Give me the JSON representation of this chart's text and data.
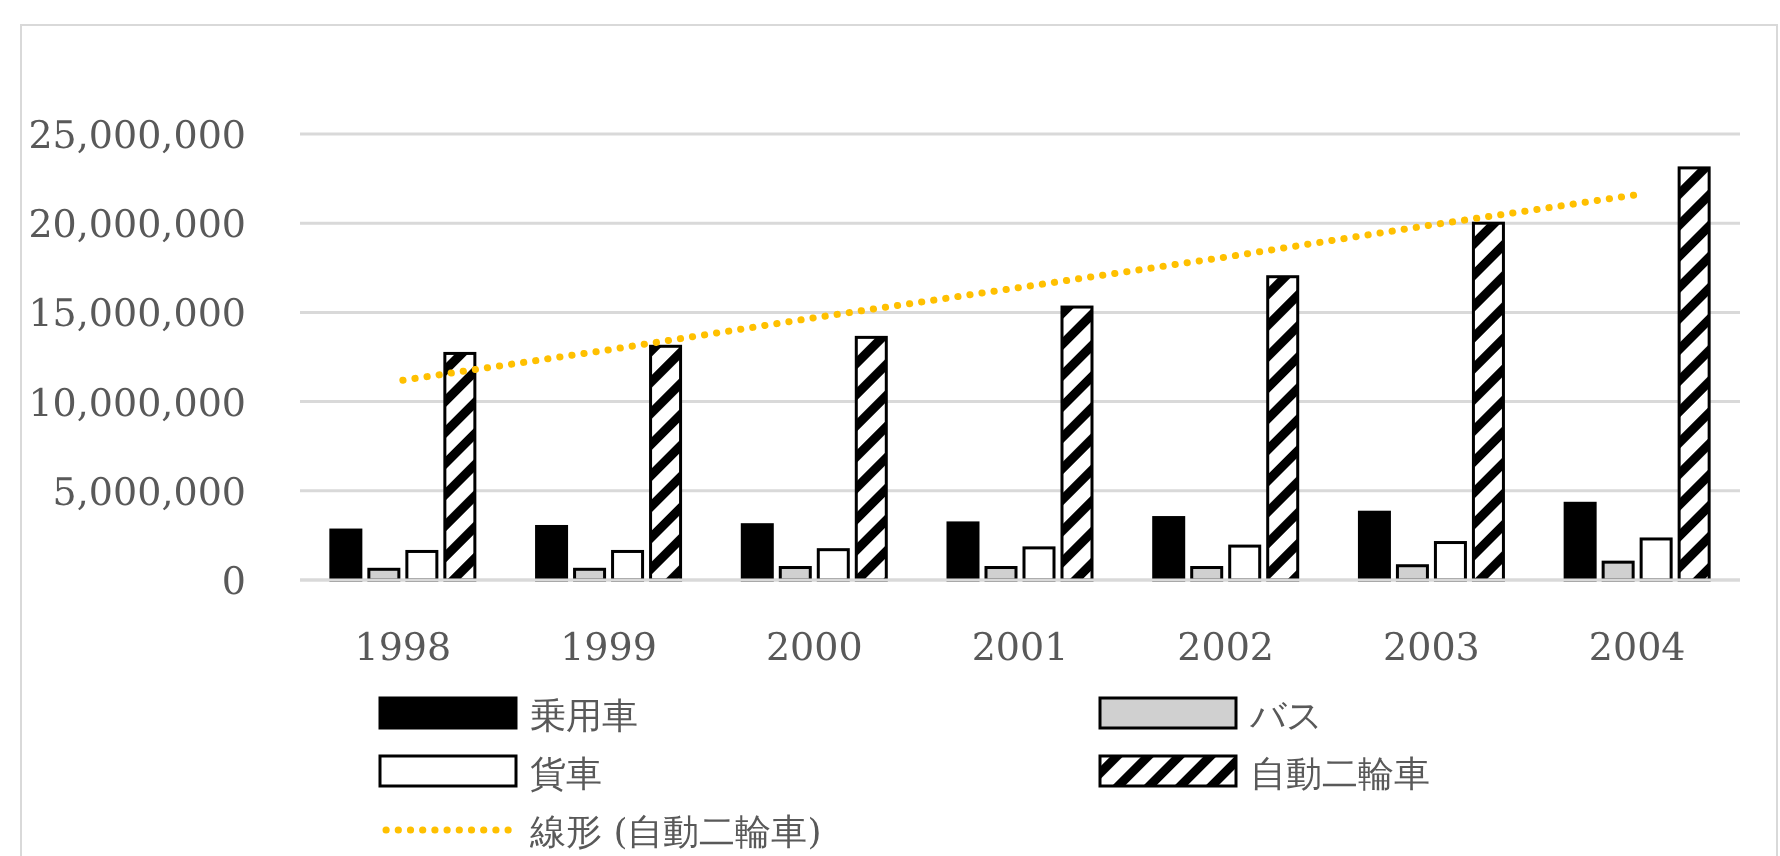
{
  "chart_data": {
    "type": "bar",
    "categories": [
      "1998",
      "1999",
      "2000",
      "2001",
      "2002",
      "2003",
      "2004"
    ],
    "series": [
      {
        "name": "乗用車",
        "color": "#000000",
        "values": [
          2800000,
          3000000,
          3100000,
          3200000,
          3500000,
          3800000,
          4300000
        ]
      },
      {
        "name": "バス",
        "color": "#d0d0d0",
        "values": [
          600000,
          600000,
          700000,
          700000,
          700000,
          800000,
          1000000
        ]
      },
      {
        "name": "貨車",
        "color": "#ffffff",
        "values": [
          1600000,
          1600000,
          1700000,
          1800000,
          1900000,
          2100000,
          2300000
        ]
      },
      {
        "name": "自動二輪車",
        "color": "#000000",
        "values": [
          12700000,
          13100000,
          13600000,
          15300000,
          17000000,
          20000000,
          23100000
        ]
      },
      {
        "name": "線形 (自動二輪車)",
        "type": "line",
        "color": "#ffc000",
        "line_style": "dotted",
        "marker": "none",
        "values": [
          11200000,
          12900000,
          14700000,
          16400000,
          18100000,
          19900000,
          21600000
        ]
      }
    ],
    "ylim": [
      0,
      25000000
    ],
    "yticks": [
      {
        "value": 0,
        "label": "0"
      },
      {
        "value": 5000000,
        "label": "5,000,000"
      },
      {
        "value": 10000000,
        "label": "10,000,000"
      },
      {
        "value": 15000000,
        "label": "15,000,000"
      },
      {
        "value": 20000000,
        "label": "20,000,000"
      },
      {
        "value": 25000000,
        "label": "25,000,000"
      }
    ],
    "grid": "y",
    "legend": "bottom"
  }
}
